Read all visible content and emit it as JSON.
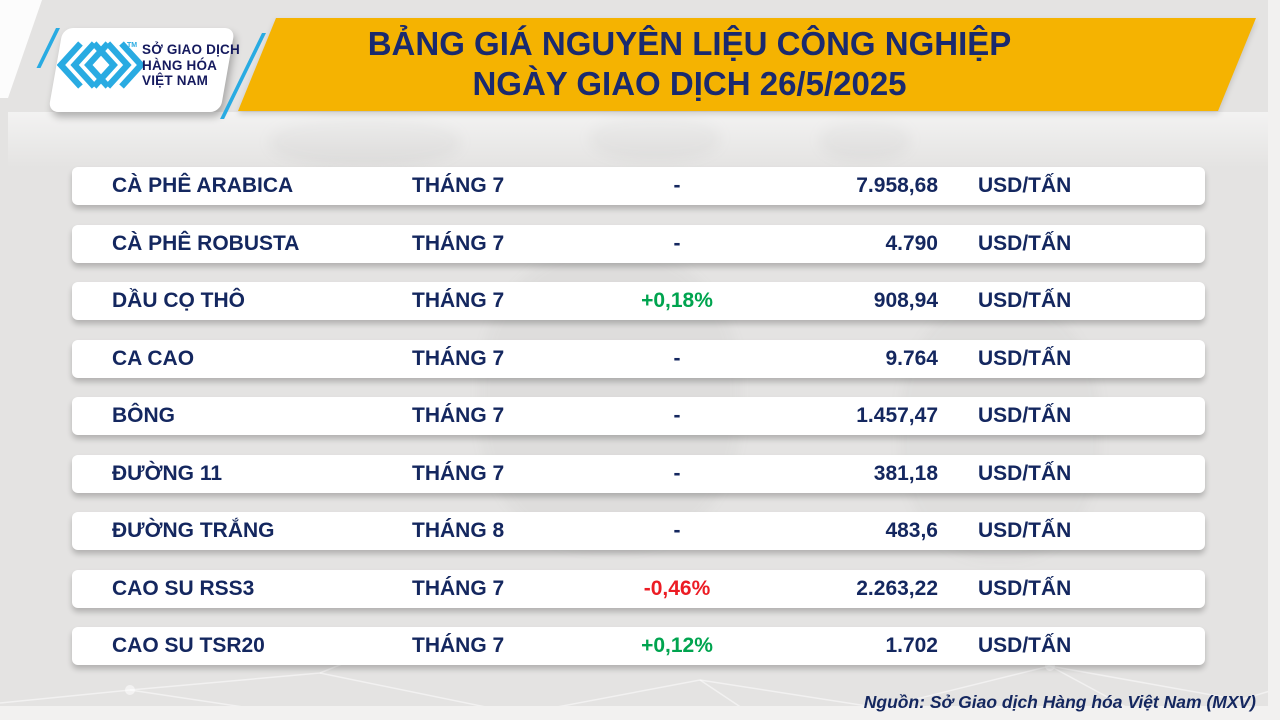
{
  "header": {
    "title_line1": "BẢNG GIÁ NGUYÊN LIỆU CÔNG NGHIỆP",
    "title_line2": "NGÀY GIAO DỊCH 26/5/2025"
  },
  "logo": {
    "line1": "SỞ GIAO DỊCH",
    "line2": "HÀNG HÓA",
    "line3": "VIỆT NAM",
    "tm": "TM",
    "mark_icon": "mxv-chevrons-icon"
  },
  "chart_data": {
    "type": "table",
    "title": "BẢNG GIÁ NGUYÊN LIỆU CÔNG NGHIỆP NGÀY GIAO DỊCH 26/5/2025",
    "rows": [
      {
        "name": "CÀ PHÊ ARABICA",
        "month": "THÁNG 7",
        "change": "-",
        "direction": "none",
        "price": "7.958,68",
        "unit": "USD/TẤN"
      },
      {
        "name": "CÀ PHÊ ROBUSTA",
        "month": "THÁNG 7",
        "change": "-",
        "direction": "none",
        "price": "4.790",
        "unit": "USD/TẤN"
      },
      {
        "name": "DẦU CỌ THÔ",
        "month": "THÁNG 7",
        "change": "+0,18%",
        "direction": "up",
        "price": "908,94",
        "unit": "USD/TẤN"
      },
      {
        "name": "CA CAO",
        "month": "THÁNG 7",
        "change": "-",
        "direction": "none",
        "price": "9.764",
        "unit": "USD/TẤN"
      },
      {
        "name": "BÔNG",
        "month": "THÁNG 7",
        "change": "-",
        "direction": "none",
        "price": "1.457,47",
        "unit": "USD/TẤN"
      },
      {
        "name": "ĐƯỜNG 11",
        "month": "THÁNG 7",
        "change": "-",
        "direction": "none",
        "price": "381,18",
        "unit": "USD/TẤN"
      },
      {
        "name": "ĐƯỜNG TRẮNG",
        "month": "THÁNG 8",
        "change": "-",
        "direction": "none",
        "price": "483,6",
        "unit": "USD/TẤN"
      },
      {
        "name": "CAO SU RSS3",
        "month": "THÁNG 7",
        "change": "-0,46%",
        "direction": "down",
        "price": "2.263,22",
        "unit": "USD/TẤN"
      },
      {
        "name": "CAO SU TSR20",
        "month": "THÁNG 7",
        "change": "+0,12%",
        "direction": "up",
        "price": "1.702",
        "unit": "USD/TẤN"
      }
    ]
  },
  "footer": {
    "source": "Nguồn: Sở Giao dịch Hàng hóa Việt Nam (MXV)"
  },
  "theme": {
    "banner_yellow": "#F5B301",
    "navy": "#14275F",
    "title_navy": "#1A2A6E",
    "green": "#00A44F",
    "red": "#EC1C24",
    "cyan": "#29ABE2",
    "row_white": "#FFFFFF",
    "background": "#E4E3E2"
  }
}
